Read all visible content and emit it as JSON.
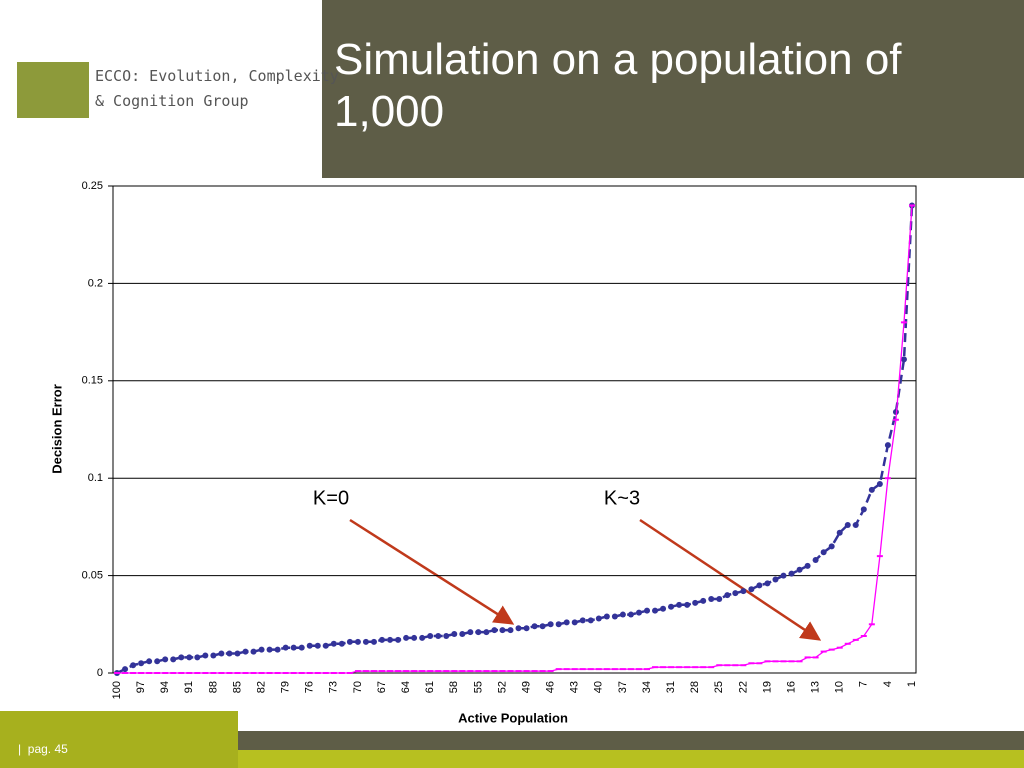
{
  "slide": {
    "title": "Simulation on a population of 1,000",
    "logo": [
      "ECCO: Evolution, Complexity",
      "& Cognition Group"
    ],
    "footer": "|  pag. 45"
  },
  "chart_data": {
    "type": "line",
    "x_label": "Active Population",
    "y_label": "Decision Error",
    "categories": [
      100,
      null,
      null,
      97,
      null,
      null,
      94,
      null,
      null,
      91,
      null,
      null,
      88,
      null,
      null,
      85,
      null,
      null,
      82,
      null,
      null,
      79,
      null,
      null,
      76,
      null,
      null,
      73,
      null,
      null,
      70,
      null,
      null,
      67,
      null,
      null,
      64,
      null,
      null,
      61,
      null,
      null,
      58,
      null,
      null,
      55,
      null,
      null,
      52,
      null,
      null,
      49,
      null,
      null,
      46,
      null,
      null,
      43,
      null,
      null,
      40,
      null,
      null,
      37,
      null,
      null,
      34,
      null,
      null,
      31,
      null,
      null,
      28,
      null,
      null,
      25,
      null,
      null,
      22,
      null,
      null,
      19,
      null,
      null,
      16,
      null,
      null,
      13,
      null,
      null,
      10,
      null,
      null,
      7,
      null,
      null,
      4,
      null,
      null,
      1
    ],
    "series": [
      {
        "name": "K=0",
        "color": "#333399",
        "values": [
          0.0,
          0.002,
          0.004,
          0.005,
          0.006,
          0.006,
          0.007,
          0.007,
          0.008,
          0.008,
          0.008,
          0.009,
          0.009,
          0.01,
          0.01,
          0.01,
          0.011,
          0.011,
          0.012,
          0.012,
          0.012,
          0.013,
          0.013,
          0.013,
          0.014,
          0.014,
          0.014,
          0.015,
          0.015,
          0.016,
          0.016,
          0.016,
          0.016,
          0.017,
          0.017,
          0.017,
          0.018,
          0.018,
          0.018,
          0.019,
          0.019,
          0.019,
          0.02,
          0.02,
          0.021,
          0.021,
          0.021,
          0.022,
          0.022,
          0.022,
          0.023,
          0.023,
          0.024,
          0.024,
          0.025,
          0.025,
          0.026,
          0.026,
          0.027,
          0.027,
          0.028,
          0.029,
          0.029,
          0.03,
          0.03,
          0.031,
          0.032,
          0.032,
          0.033,
          0.034,
          0.035,
          0.035,
          0.036,
          0.037,
          0.038,
          0.038,
          0.04,
          0.041,
          0.042,
          0.043,
          0.045,
          0.046,
          0.048,
          0.05,
          0.051,
          0.053,
          0.055,
          0.058,
          0.062,
          0.065,
          0.072,
          0.076,
          0.076,
          0.084,
          0.094,
          0.097,
          0.117,
          0.134,
          0.161,
          0.24
        ]
      },
      {
        "name": "K~3",
        "color": "#ff00ff",
        "values": [
          0,
          0,
          0,
          0,
          0,
          0,
          0,
          0,
          0,
          0,
          0,
          0,
          0,
          0,
          0,
          0,
          0,
          0,
          0,
          0,
          0,
          0,
          0,
          0,
          0,
          0,
          0,
          0,
          0,
          0,
          0.001,
          0.001,
          0.001,
          0.001,
          0.001,
          0.001,
          0.001,
          0.001,
          0.001,
          0.001,
          0.001,
          0.001,
          0.001,
          0.001,
          0.001,
          0.001,
          0.001,
          0.001,
          0.001,
          0.001,
          0.001,
          0.001,
          0.001,
          0.001,
          0.001,
          0.002,
          0.002,
          0.002,
          0.002,
          0.002,
          0.002,
          0.002,
          0.002,
          0.002,
          0.002,
          0.002,
          0.002,
          0.003,
          0.003,
          0.003,
          0.003,
          0.003,
          0.003,
          0.003,
          0.003,
          0.004,
          0.004,
          0.004,
          0.004,
          0.005,
          0.005,
          0.006,
          0.006,
          0.006,
          0.006,
          0.006,
          0.008,
          0.008,
          0.011,
          0.012,
          0.013,
          0.015,
          0.017,
          0.019,
          0.025,
          0.06,
          0.1,
          0.13,
          0.18,
          0.24
        ]
      }
    ],
    "ylim": [
      0,
      0.25
    ],
    "yticks": [
      0,
      0.05,
      0.1,
      0.15,
      0.2,
      0.25
    ],
    "grid": true
  }
}
